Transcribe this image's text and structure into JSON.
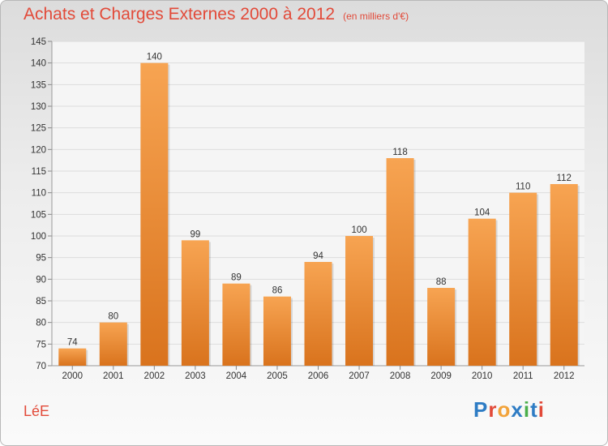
{
  "chart_data": {
    "type": "bar",
    "title": "Achats et Charges Externes 2000 à 2012",
    "subtitle": "(en milliers d'€)",
    "categories": [
      "2000",
      "2001",
      "2002",
      "2003",
      "2004",
      "2005",
      "2006",
      "2007",
      "2008",
      "2009",
      "2010",
      "2011",
      "2012"
    ],
    "values": [
      74,
      80,
      140,
      99,
      89,
      86,
      94,
      100,
      118,
      88,
      104,
      110,
      112
    ],
    "ylim": [
      70,
      145
    ],
    "yticks": [
      70,
      75,
      80,
      85,
      90,
      95,
      100,
      105,
      110,
      115,
      120,
      125,
      130,
      135,
      140,
      145
    ],
    "grid": true,
    "legend": "none",
    "bar_color_top": "#f7a452",
    "bar_color_bottom": "#d9731d",
    "title_color": "#e24a39"
  },
  "footer": {
    "commune": "LéE",
    "brand": "Proxiti",
    "brand_colors": [
      "#2e7cc4",
      "#e24a39",
      "#f2a33a",
      "#2e7cc4",
      "#4aae4a",
      "#2e7cc4",
      "#e24a39"
    ]
  }
}
